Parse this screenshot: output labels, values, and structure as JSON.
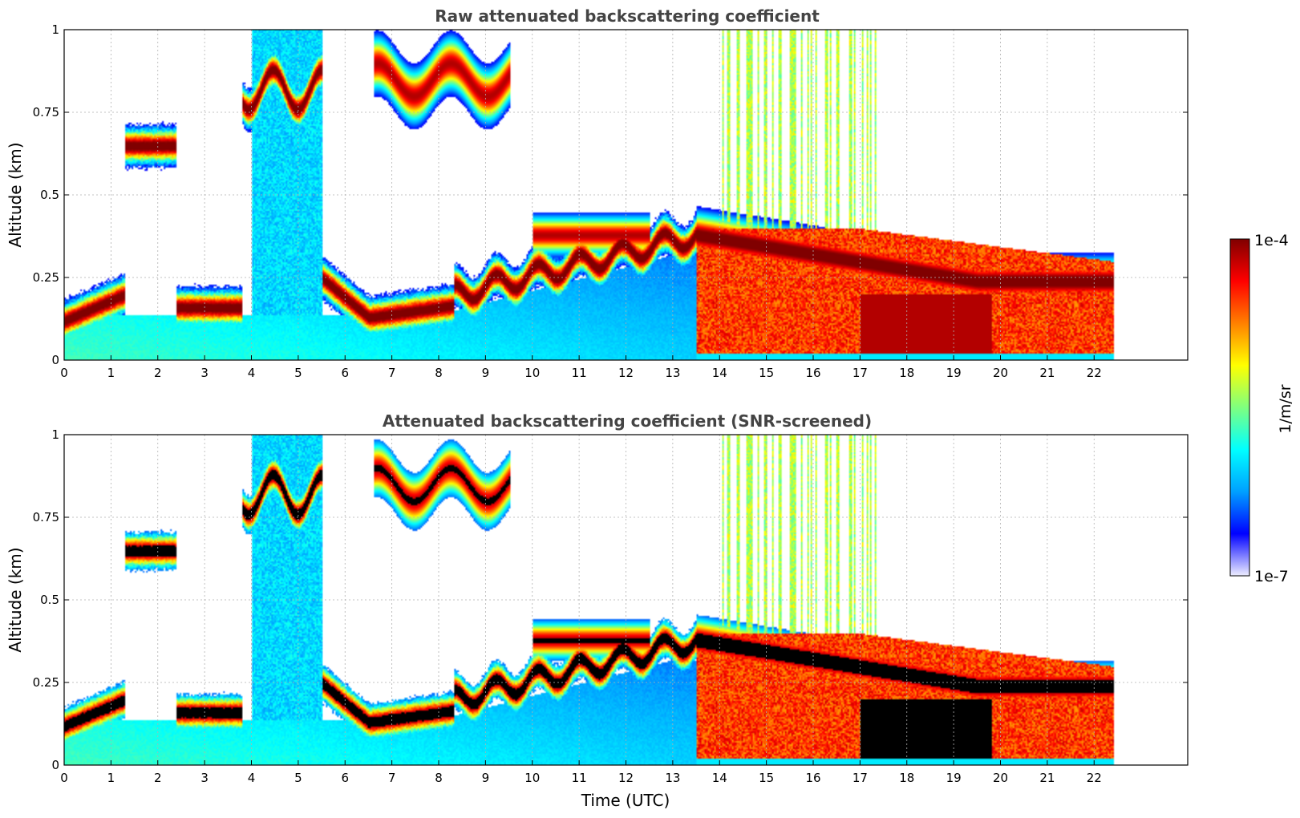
{
  "colormap": {
    "label": "1/m/sr",
    "min_label": "1e-7",
    "max_label": "1e-4",
    "stops": [
      "#eeeeff",
      "#0000ff",
      "#00a0ff",
      "#00ffff",
      "#7fff7f",
      "#ffff00",
      "#ff8000",
      "#ff0000",
      "#800000"
    ],
    "clip_color": "#000000"
  },
  "chart_data": [
    {
      "type": "heatmap",
      "title": "Raw attenuated backscattering coefficient",
      "xlabel": "",
      "ylabel": "Altitude (km)",
      "xlim": [
        0,
        24
      ],
      "ylim": [
        0,
        1
      ],
      "xticks": [
        "0",
        "1",
        "2",
        "3",
        "4",
        "5",
        "6",
        "7",
        "8",
        "9",
        "10",
        "11",
        "12",
        "13",
        "14",
        "15",
        "16",
        "17",
        "18",
        "19",
        "20",
        "21",
        "22"
      ],
      "yticks": [
        "0",
        "0.25",
        "0.5",
        "0.75",
        "1"
      ],
      "grid": true,
      "screened": false,
      "data_end_time": 22.4
    },
    {
      "type": "heatmap",
      "title": "Attenuated backscattering coefficient (SNR-screened)",
      "xlabel": "Time (UTC)",
      "ylabel": "Altitude (km)",
      "xlim": [
        0,
        24
      ],
      "ylim": [
        0,
        1
      ],
      "xticks": [
        "0",
        "1",
        "2",
        "3",
        "4",
        "5",
        "6",
        "7",
        "8",
        "9",
        "10",
        "11",
        "12",
        "13",
        "14",
        "15",
        "16",
        "17",
        "18",
        "19",
        "20",
        "21",
        "22"
      ],
      "yticks": [
        "0",
        "0.25",
        "0.5",
        "0.75",
        "1"
      ],
      "grid": true,
      "screened": true,
      "data_end_time": 22.4
    }
  ]
}
